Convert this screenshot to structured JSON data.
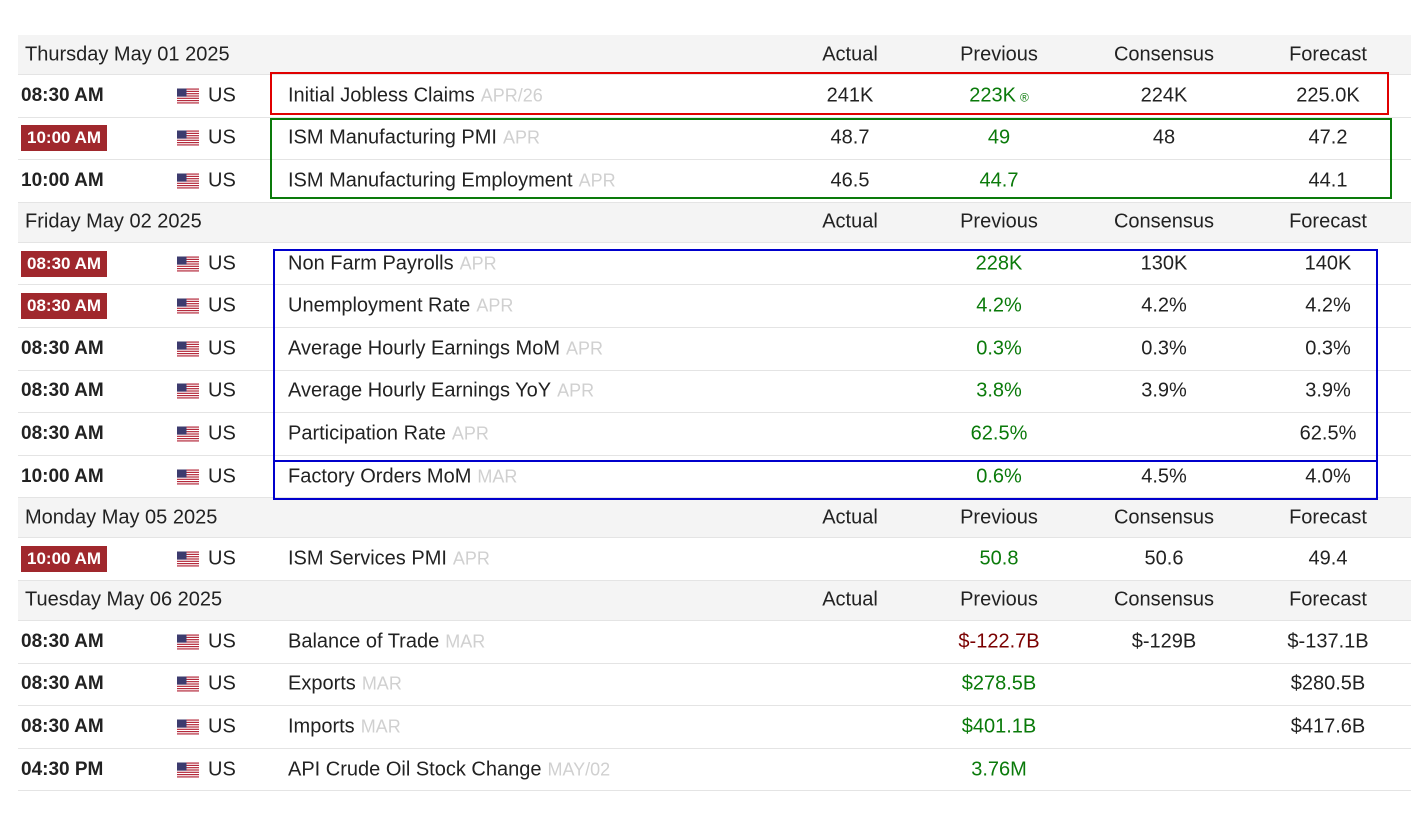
{
  "columns": {
    "actual": "Actual",
    "previous": "Previous",
    "consensus": "Consensus",
    "forecast": "Forecast"
  },
  "flag_icon": "us-flag-icon",
  "colors": {
    "time_highlight": "#a0282d",
    "previous_up": "#0a7a0a",
    "previous_down": "#7a0000",
    "box_red": "#e00000",
    "box_green": "#0a7a0a",
    "box_blue": "#0000cc"
  },
  "days": [
    {
      "date": "Thursday May 01 2025",
      "events": [
        {
          "time": "08:30 AM",
          "highlight": false,
          "country": "US",
          "name": "Initial Jobless Claims",
          "ref": "APR/26",
          "actual": "241K",
          "previous": "223K",
          "revised": "®",
          "consensus": "224K",
          "forecast": "225.0K"
        },
        {
          "time": "10:00 AM",
          "highlight": true,
          "country": "US",
          "name": "ISM Manufacturing PMI",
          "ref": "APR",
          "actual": "48.7",
          "previous": "49",
          "consensus": "48",
          "forecast": "47.2"
        },
        {
          "time": "10:00 AM",
          "highlight": false,
          "country": "US",
          "name": "ISM Manufacturing Employment",
          "ref": "APR",
          "actual": "46.5",
          "previous": "44.7",
          "consensus": "",
          "forecast": "44.1"
        }
      ]
    },
    {
      "date": "Friday May 02 2025",
      "events": [
        {
          "time": "08:30 AM",
          "highlight": true,
          "country": "US",
          "name": "Non Farm Payrolls",
          "ref": "APR",
          "actual": "",
          "previous": "228K",
          "consensus": "130K",
          "forecast": "140K"
        },
        {
          "time": "08:30 AM",
          "highlight": true,
          "country": "US",
          "name": "Unemployment Rate",
          "ref": "APR",
          "actual": "",
          "previous": "4.2%",
          "consensus": "4.2%",
          "forecast": "4.2%"
        },
        {
          "time": "08:30 AM",
          "highlight": false,
          "country": "US",
          "name": "Average Hourly Earnings MoM",
          "ref": "APR",
          "actual": "",
          "previous": "0.3%",
          "consensus": "0.3%",
          "forecast": "0.3%"
        },
        {
          "time": "08:30 AM",
          "highlight": false,
          "country": "US",
          "name": "Average Hourly Earnings YoY",
          "ref": "APR",
          "actual": "",
          "previous": "3.8%",
          "consensus": "3.9%",
          "forecast": "3.9%"
        },
        {
          "time": "08:30 AM",
          "highlight": false,
          "country": "US",
          "name": "Participation Rate",
          "ref": "APR",
          "actual": "",
          "previous": "62.5%",
          "consensus": "",
          "forecast": "62.5%"
        },
        {
          "time": "10:00 AM",
          "highlight": false,
          "country": "US",
          "name": "Factory Orders MoM",
          "ref": "MAR",
          "actual": "",
          "previous": "0.6%",
          "consensus": "4.5%",
          "forecast": "4.0%"
        }
      ]
    },
    {
      "date": "Monday May 05 2025",
      "events": [
        {
          "time": "10:00 AM",
          "highlight": true,
          "country": "US",
          "name": "ISM Services PMI",
          "ref": "APR",
          "actual": "",
          "previous": "50.8",
          "consensus": "50.6",
          "forecast": "49.4"
        }
      ]
    },
    {
      "date": "Tuesday May 06 2025",
      "events": [
        {
          "time": "08:30 AM",
          "highlight": false,
          "country": "US",
          "name": "Balance of Trade",
          "ref": "MAR",
          "actual": "",
          "previous": "$-122.7B",
          "previous_color": "red",
          "consensus": "$-129B",
          "forecast": "$-137.1B"
        },
        {
          "time": "08:30 AM",
          "highlight": false,
          "country": "US",
          "name": "Exports",
          "ref": "MAR",
          "actual": "",
          "previous": "$278.5B",
          "consensus": "",
          "forecast": "$280.5B"
        },
        {
          "time": "08:30 AM",
          "highlight": false,
          "country": "US",
          "name": "Imports",
          "ref": "MAR",
          "actual": "",
          "previous": "$401.1B",
          "consensus": "",
          "forecast": "$417.6B"
        },
        {
          "time": "04:30 PM",
          "highlight": false,
          "country": "US",
          "name": "API Crude Oil Stock Change",
          "ref": "MAY/02",
          "actual": "",
          "previous": "3.76M",
          "consensus": "",
          "forecast": ""
        }
      ]
    }
  ]
}
